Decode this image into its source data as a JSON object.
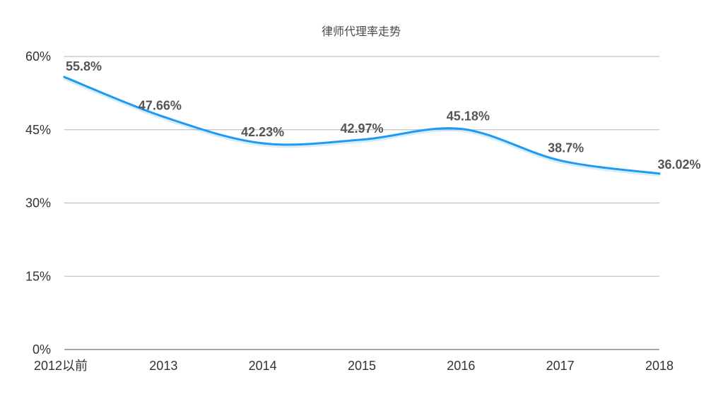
{
  "chart_data": {
    "type": "line",
    "title": "律师代理率走势",
    "xlabel": "",
    "ylabel": "",
    "categories": [
      "2012以前",
      "2013",
      "2014",
      "2015",
      "2016",
      "2017",
      "2018"
    ],
    "series": [
      {
        "values": [
          55.8,
          47.66,
          42.23,
          42.97,
          45.18,
          38.7,
          36.02
        ],
        "data_labels": [
          "55.8%",
          "47.66%",
          "42.23%",
          "42.97%",
          "45.18%",
          "38.7%",
          "36.02%"
        ]
      }
    ],
    "ylim": [
      0,
      60
    ],
    "yticks": [
      0,
      15,
      30,
      45,
      60
    ],
    "ytick_labels": [
      "0%",
      "15%",
      "30%",
      "45%",
      "60%"
    ],
    "grid": true,
    "smooth": true,
    "legend": "none",
    "line_color": "#1e9bf0"
  }
}
